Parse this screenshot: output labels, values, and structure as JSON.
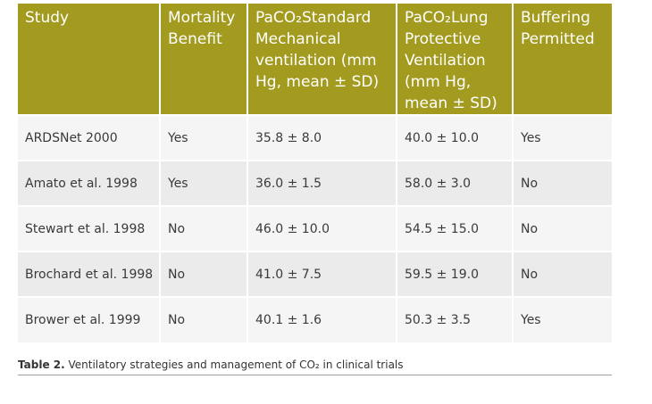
{
  "table": {
    "headers": [
      {
        "lines": [
          "Study"
        ]
      },
      {
        "lines": [
          "Mortality",
          "Benefit"
        ]
      },
      {
        "lines": [
          "PaCO₂Standard",
          "Mechanical",
          "ventilation (mm",
          "Hg, mean ± SD)"
        ]
      },
      {
        "lines": [
          "PaCO₂Lung",
          "Protective",
          "Ventilation",
          "(mm Hg,",
          "mean ± SD)"
        ]
      },
      {
        "lines": [
          "Buffering",
          "Permitted"
        ]
      }
    ],
    "rows": [
      [
        "ARDSNet 2000",
        "Yes",
        "35.8 ± 8.0",
        "40.0 ± 10.0",
        "Yes"
      ],
      [
        "Amato et al. 1998",
        "Yes",
        "36.0 ± 1.5",
        "58.0 ± 3.0",
        "No"
      ],
      [
        "Stewart et al. 1998",
        "No",
        "46.0 ± 10.0",
        "54.5 ± 15.0",
        "No"
      ],
      [
        "Brochard et al. 1998",
        "No",
        "41.0 ± 7.5",
        "59.5 ± 19.0",
        "No"
      ],
      [
        "Brower et al. 1999",
        "No",
        "40.1 ± 1.6",
        "50.3 ± 3.5",
        "Yes"
      ]
    ]
  },
  "caption": {
    "label": "Table 2.",
    "text": "Ventilatory strategies and management of CO₂ in clinical trials"
  }
}
